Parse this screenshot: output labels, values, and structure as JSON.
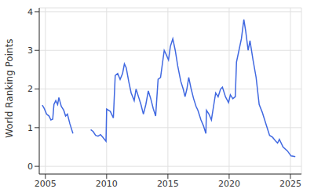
{
  "chart_data": {
    "type": "line",
    "y_label": "World Ranking Points",
    "color": "#4169e1",
    "grid": true,
    "xlim": [
      2004.5,
      2025.9
    ],
    "xticks": [
      2005,
      2010,
      2015,
      2020,
      2025
    ],
    "ylim": [
      -0.2,
      4.1
    ],
    "yticks": [
      0,
      1,
      2,
      3,
      4
    ],
    "x": [
      2004.75,
      2004.9,
      2005.1,
      2005.3,
      2005.45,
      2005.6,
      2005.7,
      2005.85,
      2006.0,
      2006.1,
      2006.3,
      2006.5,
      2006.65,
      2006.8,
      2007.0,
      2007.25,
      2008.0,
      2008.7,
      2008.9,
      2009.1,
      2009.3,
      2009.5,
      2009.7,
      2009.95,
      2010.0,
      2010.3,
      2010.55,
      2010.7,
      2010.9,
      2011.1,
      2011.3,
      2011.45,
      2011.6,
      2011.8,
      2012.0,
      2012.25,
      2012.4,
      2012.6,
      2012.8,
      2013.0,
      2013.2,
      2013.4,
      2013.6,
      2013.8,
      2014.0,
      2014.2,
      2014.4,
      2014.7,
      2014.85,
      2015.05,
      2015.2,
      2015.4,
      2015.6,
      2015.8,
      2016.05,
      2016.25,
      2016.4,
      2016.55,
      2016.7,
      2016.9,
      2017.1,
      2017.3,
      2017.45,
      2017.7,
      2017.9,
      2018.1,
      2018.15,
      2018.35,
      2018.55,
      2018.75,
      2018.9,
      2019.1,
      2019.3,
      2019.45,
      2019.7,
      2019.95,
      2020.1,
      2020.3,
      2020.5,
      2020.6,
      2020.8,
      2021.0,
      2021.2,
      2021.35,
      2021.55,
      2021.7,
      2021.95,
      2022.2,
      2022.45,
      2022.7,
      2023.0,
      2023.3,
      2023.55,
      2023.8,
      2023.95,
      2024.1,
      2024.4,
      2024.75,
      2025.05,
      2025.4
    ],
    "values": [
      1.58,
      1.5,
      1.35,
      1.3,
      1.2,
      1.22,
      1.6,
      1.7,
      1.6,
      1.78,
      1.55,
      1.45,
      1.3,
      1.35,
      1.1,
      0.85,
      null,
      0.95,
      0.9,
      0.8,
      0.78,
      0.82,
      0.75,
      0.65,
      1.48,
      1.42,
      1.25,
      2.35,
      2.4,
      2.25,
      2.4,
      2.65,
      2.55,
      2.2,
      1.9,
      1.7,
      2.0,
      1.8,
      1.6,
      1.35,
      1.6,
      1.95,
      1.75,
      1.5,
      1.3,
      2.25,
      2.3,
      3.0,
      2.9,
      2.75,
      3.1,
      3.3,
      3.0,
      2.6,
      2.2,
      2.0,
      1.8,
      2.0,
      2.3,
      2.0,
      1.75,
      1.55,
      1.45,
      1.2,
      1.05,
      0.85,
      1.45,
      1.35,
      1.2,
      1.6,
      1.9,
      1.8,
      2.0,
      2.05,
      1.8,
      1.65,
      1.85,
      1.75,
      1.8,
      2.7,
      3.0,
      3.3,
      3.8,
      3.5,
      3.0,
      3.25,
      2.75,
      2.3,
      1.6,
      1.4,
      1.1,
      0.8,
      0.75,
      0.65,
      0.6,
      0.7,
      0.5,
      0.4,
      0.27,
      0.25
    ]
  }
}
